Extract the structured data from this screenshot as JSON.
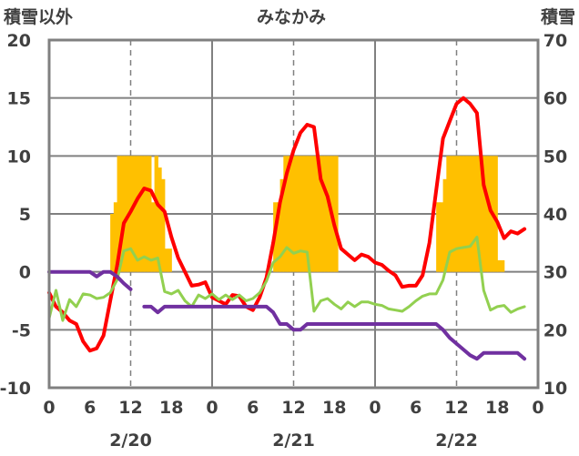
{
  "chart_data": {
    "type": "line",
    "title": "みなかみ",
    "left_axis_label": "積雪以外",
    "right_axis_label": "積雪",
    "left_ylim": [
      -10,
      20
    ],
    "left_yticks": [
      "-10",
      "-5",
      "0",
      "5",
      "10",
      "15",
      "20"
    ],
    "right_ylim": [
      10,
      70
    ],
    "right_yticks": [
      "10",
      "20",
      "30",
      "40",
      "50",
      "60",
      "70"
    ],
    "x_hours": [
      0,
      72
    ],
    "x_ticks": [
      "0",
      "6",
      "12",
      "18",
      "0",
      "6",
      "12",
      "18",
      "0",
      "6",
      "12",
      "18",
      "0"
    ],
    "day_labels": [
      "2/20",
      "2/21",
      "2/22"
    ],
    "grid": true,
    "colors": {
      "bars": "#FFC000",
      "red": "#FF0000",
      "green": "#92D050",
      "purple": "#7030A0",
      "axis": "#808080",
      "text": "#404040"
    },
    "series": [
      {
        "type": "bar",
        "axis": "left",
        "x": [
          9,
          9.5,
          10,
          10.5,
          11,
          11.5,
          12,
          12.5,
          13,
          13.5,
          14,
          14.5,
          15,
          15.5,
          16,
          16.5,
          17,
          17.5,
          33,
          33.5,
          34,
          34.5,
          35,
          35.5,
          36,
          36.5,
          37,
          37.5,
          38,
          38.5,
          39,
          39.5,
          40,
          40.5,
          41,
          41.5,
          42,
          57,
          57.5,
          58,
          58.5,
          59,
          59.5,
          60,
          60.5,
          61,
          61.5,
          62,
          62.5,
          63,
          63.5,
          64,
          64.5,
          65,
          65.5,
          66,
          66.5
        ],
        "values": [
          5,
          6,
          10,
          10,
          10,
          10,
          10,
          10,
          10,
          10,
          10,
          10,
          6,
          10,
          9,
          8,
          2,
          2,
          6,
          6,
          8,
          10,
          10,
          10,
          10,
          10,
          10,
          10,
          10,
          10,
          10,
          10,
          10,
          10,
          10,
          10,
          10,
          6,
          6,
          8,
          10,
          10,
          10,
          10,
          10,
          10,
          10,
          10,
          10,
          10,
          10,
          10,
          10,
          10,
          10,
          1,
          1
        ]
      },
      {
        "type": "line",
        "axis": "left",
        "color": "red",
        "x": [
          0,
          1,
          2,
          3,
          4,
          5,
          6,
          7,
          8,
          9,
          10,
          11,
          12,
          13,
          14,
          15,
          16,
          17,
          18,
          19,
          20,
          21,
          22,
          23,
          24,
          25,
          26,
          27,
          28,
          29,
          30,
          31,
          32,
          33,
          34,
          35,
          36,
          37,
          38,
          39,
          40,
          41,
          42,
          43,
          44,
          45,
          46,
          47,
          48,
          49,
          50,
          51,
          52,
          53,
          54,
          55,
          56,
          57,
          58,
          59,
          60,
          61,
          62,
          63,
          64,
          65,
          66,
          67,
          68,
          69,
          70,
          71,
          72
        ],
        "values": [
          -1.8,
          -3,
          -3.5,
          -4.2,
          -4.5,
          -6,
          -6.8,
          -6.6,
          -5.5,
          -2.5,
          0.5,
          4.2,
          5.2,
          6.3,
          7.2,
          7,
          5.8,
          5.2,
          3,
          1.2,
          0,
          -1.2,
          -1.1,
          -0.9,
          -2.2,
          -2.5,
          -2.8,
          -2,
          -2.1,
          -3,
          -3.3,
          -2.2,
          -0.5,
          2.5,
          6,
          8.5,
          10.5,
          12,
          12.7,
          12.5,
          8,
          6.5,
          4,
          2,
          1.5,
          1,
          1.5,
          1.3,
          0.8,
          0.6,
          0.1,
          -0.3,
          -1.3,
          -1.2,
          -1.2,
          -0.3,
          2.5,
          7,
          11.5,
          13,
          14.5,
          15,
          14.5,
          13.7,
          7.5,
          5.3,
          4.3,
          2.9,
          3.5,
          3.3,
          3.7,
          null,
          null
        ]
      },
      {
        "type": "line",
        "axis": "left",
        "color": "green",
        "x": [
          0,
          1,
          2,
          3,
          4,
          5,
          6,
          7,
          8,
          9,
          10,
          11,
          12,
          13,
          14,
          15,
          16,
          17,
          18,
          19,
          20,
          21,
          22,
          23,
          24,
          25,
          26,
          27,
          28,
          29,
          30,
          31,
          32,
          33,
          34,
          35,
          36,
          37,
          38,
          39,
          40,
          41,
          42,
          43,
          44,
          45,
          46,
          47,
          48,
          49,
          50,
          51,
          52,
          53,
          54,
          55,
          56,
          57,
          58,
          59,
          60,
          61,
          62,
          63,
          64,
          65,
          66,
          67,
          68,
          69,
          70,
          71,
          72
        ],
        "values": [
          -4,
          -1.6,
          -4.2,
          -2.4,
          -3,
          -1.9,
          -2,
          -2.3,
          -2.2,
          -1.8,
          -0.7,
          1.8,
          2,
          1,
          1.3,
          1,
          1.2,
          -1.7,
          -1.9,
          -1.6,
          -2.5,
          -3,
          -2,
          -2.3,
          -1.9,
          -2.4,
          -2,
          -2.4,
          -2,
          -2.5,
          -2.3,
          -1.8,
          -0.8,
          0.8,
          1.3,
          2.1,
          1.6,
          1.8,
          1.7,
          -3.4,
          -2.5,
          -2.3,
          -2.8,
          -3.2,
          -2.6,
          -3,
          -2.6,
          -2.6,
          -2.8,
          -2.9,
          -3.2,
          -3.3,
          -3.4,
          -3,
          -2.5,
          -2.1,
          -1.9,
          -1.9,
          -0.7,
          1.7,
          2,
          2.1,
          2.2,
          3,
          -1.6,
          -3.3,
          -3,
          -2.9,
          -3.5,
          -3.2,
          -3,
          null,
          null
        ]
      },
      {
        "type": "line",
        "axis": "left",
        "color": "purple",
        "x": [
          0,
          1,
          2,
          3,
          4,
          5,
          6,
          7,
          8,
          9,
          10,
          11,
          12,
          13,
          14,
          15,
          16,
          17,
          18,
          19,
          20,
          21,
          22,
          23,
          24,
          25,
          26,
          27,
          28,
          29,
          30,
          31,
          32,
          33,
          34,
          35,
          36,
          37,
          38,
          39,
          40,
          41,
          42,
          43,
          44,
          45,
          46,
          47,
          48,
          49,
          50,
          51,
          52,
          53,
          54,
          55,
          56,
          57,
          58,
          59,
          60,
          61,
          62,
          63,
          64,
          65,
          66,
          67,
          68,
          69,
          70,
          71,
          72
        ],
        "values": [
          0,
          0,
          0,
          0,
          0,
          0,
          0,
          -0.4,
          0,
          0,
          -0.4,
          -1,
          -1.5,
          null,
          -3,
          -3,
          -3.5,
          -3,
          -3,
          -3,
          -3,
          -3,
          -3,
          -3,
          -3,
          -3,
          -3,
          -3,
          -3,
          -3,
          -3,
          -3,
          -3,
          -3.5,
          -4.5,
          -4.5,
          -5,
          -5,
          -4.5,
          -4.5,
          -4.5,
          -4.5,
          -4.5,
          -4.5,
          -4.5,
          -4.5,
          -4.5,
          -4.5,
          -4.5,
          -4.5,
          -4.5,
          -4.5,
          -4.5,
          -4.5,
          -4.5,
          -4.5,
          -4.5,
          -4.5,
          -5,
          -5.7,
          -6.2,
          -6.7,
          -7.2,
          -7.5,
          -7,
          -7,
          -7,
          -7,
          -7,
          -7,
          -7.5,
          null,
          null
        ]
      }
    ]
  }
}
